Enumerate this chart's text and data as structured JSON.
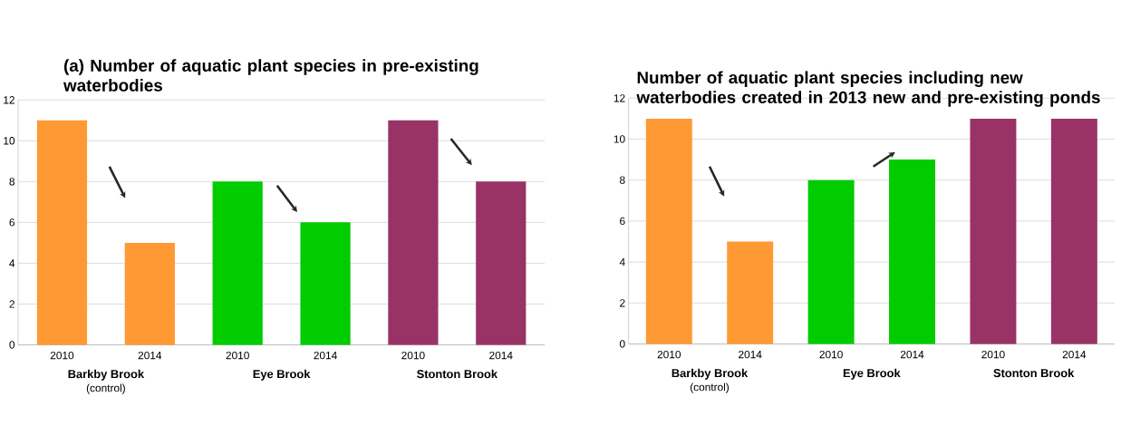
{
  "chart_data": [
    {
      "type": "bar",
      "title": "(a) Number of aquatic plant species in pre-existing waterbodies",
      "categories": [
        "2010",
        "2014",
        "2010",
        "2014",
        "2010",
        "2014"
      ],
      "values": [
        11,
        5,
        8,
        6,
        11,
        8
      ],
      "colors": [
        "#ff9933",
        "#ff9933",
        "#00cc00",
        "#00cc00",
        "#993366",
        "#993366"
      ],
      "ylim": [
        0,
        12
      ],
      "yticks": [
        0,
        2,
        4,
        6,
        8,
        10,
        12
      ],
      "grid": "y",
      "annotations": [
        "Barkby Brook",
        "Eye Brook",
        "Stonton Brook",
        "(control)"
      ]
    },
    {
      "type": "bar",
      "title": "Number of aquatic plant species including new waterbodies created in 2013 new and pre-existing ponds",
      "categories": [
        "2010",
        "2014",
        "2010",
        "2014",
        "2010",
        "2014"
      ],
      "values": [
        11,
        5,
        8,
        9,
        11,
        11
      ],
      "colors": [
        "#ff9933",
        "#ff9933",
        "#00cc00",
        "#00cc00",
        "#993366",
        "#993366"
      ],
      "ylim": [
        0,
        12
      ],
      "yticks": [
        0,
        2,
        4,
        6,
        8,
        10,
        12
      ],
      "grid": "y",
      "annotations": [
        "Barkby Brook",
        "Eye Brook",
        "Stonton Brook",
        "(control)"
      ]
    }
  ]
}
